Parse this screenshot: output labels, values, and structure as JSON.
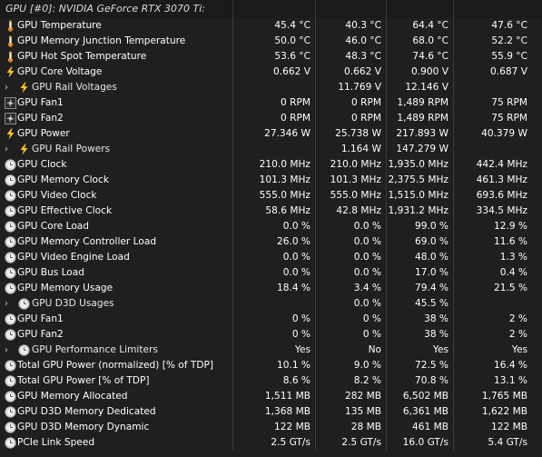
{
  "header": {
    "title": "GPU [#0]: NVIDIA GeForce RTX 3070 Ti:"
  },
  "rows": [
    {
      "label": "GPU Temperature",
      "icon": "thermometer-icon",
      "values": [
        "45.4 °C",
        "40.3 °C",
        "64.4 °C",
        "47.6 °C"
      ]
    },
    {
      "label": "GPU Memory Junction Temperature",
      "icon": "thermometer-icon",
      "values": [
        "50.0 °C",
        "46.0 °C",
        "68.0 °C",
        "52.2 °C"
      ]
    },
    {
      "label": "GPU Hot Spot Temperature",
      "icon": "thermometer-icon",
      "values": [
        "53.6 °C",
        "48.3 °C",
        "74.6 °C",
        "55.9 °C"
      ]
    },
    {
      "label": "GPU Core Voltage",
      "icon": "lightning-icon",
      "values": [
        "0.662 V",
        "0.662 V",
        "0.900 V",
        "0.687 V"
      ]
    },
    {
      "label": "GPU Rail Voltages",
      "icon": "lightning-icon",
      "expander": true,
      "values": [
        "",
        "11.769 V",
        "12.146 V",
        ""
      ]
    },
    {
      "label": "GPU Fan1",
      "icon": "fan-icon",
      "values": [
        "0 RPM",
        "0 RPM",
        "1,489 RPM",
        "75 RPM"
      ]
    },
    {
      "label": "GPU Fan2",
      "icon": "fan-icon",
      "values": [
        "0 RPM",
        "0 RPM",
        "1,489 RPM",
        "75 RPM"
      ]
    },
    {
      "label": "GPU Power",
      "icon": "lightning-icon",
      "values": [
        "27.346 W",
        "25.738 W",
        "217.893 W",
        "40.379 W"
      ]
    },
    {
      "label": "GPU Rail Powers",
      "icon": "lightning-icon",
      "expander": true,
      "values": [
        "",
        "1.164 W",
        "147.279 W",
        ""
      ]
    },
    {
      "label": "GPU Clock",
      "icon": "clock-icon",
      "values": [
        "210.0 MHz",
        "210.0 MHz",
        "1,935.0 MHz",
        "442.4 MHz"
      ]
    },
    {
      "label": "GPU Memory Clock",
      "icon": "clock-icon",
      "values": [
        "101.3 MHz",
        "101.3 MHz",
        "2,375.5 MHz",
        "461.3 MHz"
      ]
    },
    {
      "label": "GPU Video Clock",
      "icon": "clock-icon",
      "values": [
        "555.0 MHz",
        "555.0 MHz",
        "1,515.0 MHz",
        "693.6 MHz"
      ]
    },
    {
      "label": "GPU Effective Clock",
      "icon": "clock-icon",
      "values": [
        "58.6 MHz",
        "42.8 MHz",
        "1,931.2 MHz",
        "334.5 MHz"
      ]
    },
    {
      "label": "GPU Core Load",
      "icon": "clock-icon",
      "values": [
        "0.0 %",
        "0.0 %",
        "99.0 %",
        "12.9 %"
      ]
    },
    {
      "label": "GPU Memory Controller Load",
      "icon": "clock-icon",
      "values": [
        "26.0 %",
        "0.0 %",
        "69.0 %",
        "11.6 %"
      ]
    },
    {
      "label": "GPU Video Engine Load",
      "icon": "clock-icon",
      "values": [
        "0.0 %",
        "0.0 %",
        "48.0 %",
        "1.3 %"
      ]
    },
    {
      "label": "GPU Bus Load",
      "icon": "clock-icon",
      "values": [
        "0.0 %",
        "0.0 %",
        "17.0 %",
        "0.4 %"
      ]
    },
    {
      "label": "GPU Memory Usage",
      "icon": "clock-icon",
      "values": [
        "18.4 %",
        "3.4 %",
        "79.4 %",
        "21.5 %"
      ]
    },
    {
      "label": "GPU D3D Usages",
      "icon": "clock-icon",
      "expander": true,
      "values": [
        "",
        "0.0 %",
        "45.5 %",
        ""
      ]
    },
    {
      "label": "GPU Fan1",
      "icon": "clock-icon",
      "values": [
        "0 %",
        "0 %",
        "38 %",
        "2 %"
      ]
    },
    {
      "label": "GPU Fan2",
      "icon": "clock-icon",
      "values": [
        "0 %",
        "0 %",
        "38 %",
        "2 %"
      ]
    },
    {
      "label": "GPU Performance Limiters",
      "icon": "clock-icon",
      "expander": true,
      "values": [
        "Yes",
        "No",
        "Yes",
        "Yes"
      ]
    },
    {
      "label": "Total GPU Power (normalized) [% of TDP]",
      "icon": "clock-icon",
      "values": [
        "10.1 %",
        "9.0 %",
        "72.5 %",
        "16.4 %"
      ]
    },
    {
      "label": "Total GPU Power [% of TDP]",
      "icon": "clock-icon",
      "values": [
        "8.6 %",
        "8.2 %",
        "70.8 %",
        "13.1 %"
      ]
    },
    {
      "label": "GPU Memory Allocated",
      "icon": "clock-icon",
      "values": [
        "1,511 MB",
        "282 MB",
        "6,502 MB",
        "1,765 MB"
      ]
    },
    {
      "label": "GPU D3D Memory Dedicated",
      "icon": "clock-icon",
      "values": [
        "1,368 MB",
        "135 MB",
        "6,361 MB",
        "1,622 MB"
      ]
    },
    {
      "label": "GPU D3D Memory Dynamic",
      "icon": "clock-icon",
      "values": [
        "122 MB",
        "28 MB",
        "461 MB",
        "122 MB"
      ]
    },
    {
      "label": "PCIe Link Speed",
      "icon": "clock-icon",
      "values": [
        "2.5 GT/s",
        "2.5 GT/s",
        "16.0 GT/s",
        "5.4 GT/s"
      ]
    }
  ]
}
